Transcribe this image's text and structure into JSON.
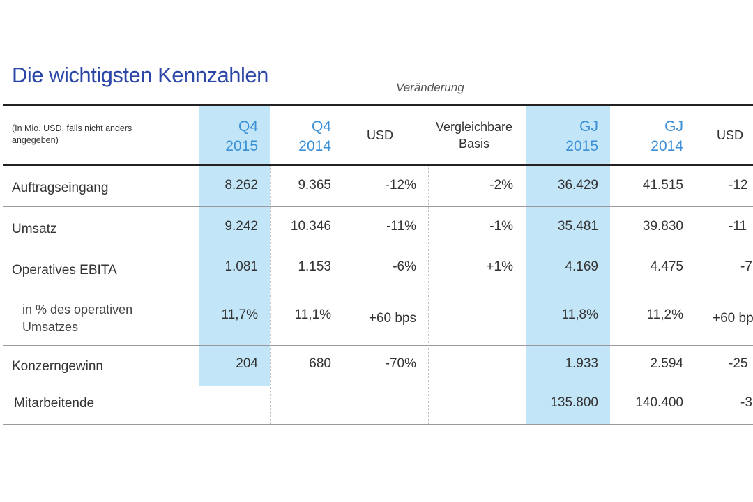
{
  "title": "Die wichtigsten Kennzahlen",
  "change_heading": "Veränderung",
  "note": "(In Mio. USD, falls nicht anders angegeben)",
  "colors": {
    "title": "#2b46a6",
    "header_blue": "#3a8fd6",
    "highlight": "#c3e5f8"
  },
  "columns": {
    "q4_2015": [
      "Q4",
      "2015"
    ],
    "q4_2014": [
      "Q4",
      "2014"
    ],
    "usd": "USD",
    "vergleichbar": [
      "Vergleichbare",
      "Basis"
    ],
    "gj_2015": [
      "GJ",
      "2015"
    ],
    "gj_2014": [
      "GJ",
      "2014"
    ],
    "usd2": "USD"
  },
  "rows": [
    {
      "label": "Auftragseingang",
      "q4_2015": "8.262",
      "q4_2014": "9.365",
      "usd": "-12%",
      "vergleichbar": "-2%",
      "gj_2015": "36.429",
      "gj_2014": "41.515",
      "usd2": "-12"
    },
    {
      "label": "Umsatz",
      "q4_2015": "9.242",
      "q4_2014": "10.346",
      "usd": "-11%",
      "vergleichbar": "-1%",
      "gj_2015": "35.481",
      "gj_2014": "39.830",
      "usd2": "-11"
    },
    {
      "label": "Operatives EBITA",
      "q4_2015": "1.081",
      "q4_2014": "1.153",
      "usd": "-6%",
      "vergleichbar": "+1%",
      "gj_2015": "4.169",
      "gj_2014": "4.475",
      "usd2": "-7"
    },
    {
      "label": "in % des operativen Umsatzes",
      "q4_2015": "11,7%",
      "q4_2014": "11,1%",
      "usd": "+60 bps",
      "vergleichbar": "",
      "gj_2015": "11,8%",
      "gj_2014": "11,2%",
      "usd2": "+60 bp"
    },
    {
      "label": "Konzerngewinn",
      "q4_2015": "204",
      "q4_2014": "680",
      "usd": "-70%",
      "vergleichbar": "",
      "gj_2015": "1.933",
      "gj_2014": "2.594",
      "usd2": "-25"
    },
    {
      "label": "Mitarbeitende",
      "q4_2015": "",
      "q4_2014": "",
      "usd": "",
      "vergleichbar": "",
      "gj_2015": "135.800",
      "gj_2014": "140.400",
      "usd2": "-3"
    }
  ]
}
